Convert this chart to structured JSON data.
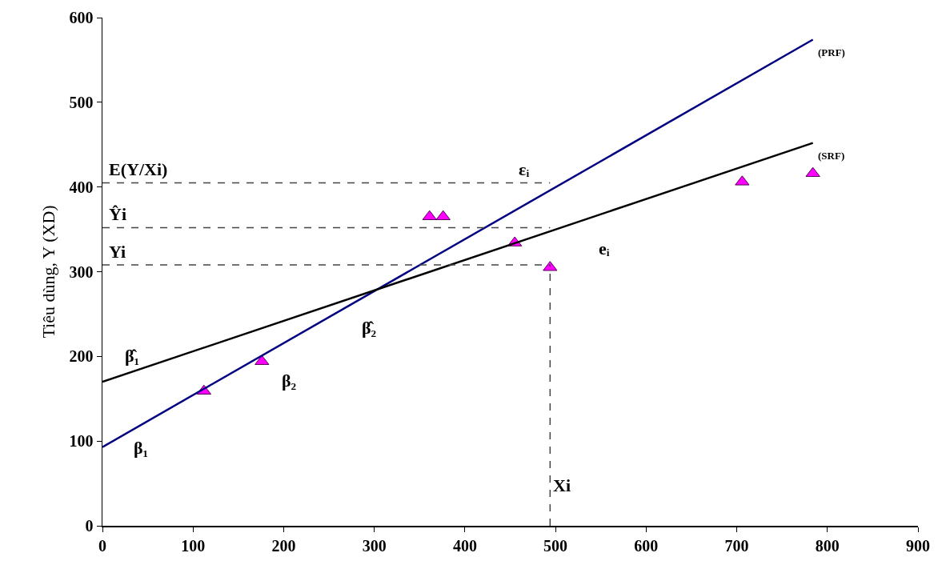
{
  "chart_data": {
    "type": "scatter",
    "ylabel": "Tiêu dùng, Y (XD)",
    "xlim": [
      0,
      900
    ],
    "xticks": [
      0,
      100,
      200,
      300,
      400,
      500,
      600,
      700,
      800,
      900
    ],
    "ylim": [
      0,
      600
    ],
    "yticks": [
      0,
      100,
      200,
      300,
      400,
      500,
      600
    ],
    "grid": false,
    "legend": false,
    "series": [
      {
        "marker": "triangle",
        "color": "#ff00ff",
        "x": [
          112,
          176,
          361,
          376,
          455,
          494,
          706,
          784
        ],
        "values": [
          159,
          194,
          365,
          365,
          334,
          305,
          406,
          416
        ]
      },
      {
        "type": "line",
        "name": "(PRF)",
        "color": "#000080",
        "x": [
          0,
          784
        ],
        "values": [
          93,
          574
        ]
      },
      {
        "type": "line",
        "name": "(SRF)",
        "color": "#000000",
        "x": [
          0,
          784
        ],
        "values": [
          170,
          452
        ]
      }
    ],
    "ref_lines": [
      {
        "axis": "y",
        "value": 405,
        "label": "E(Y/Xi)",
        "line_style": "dashed"
      },
      {
        "axis": "y",
        "value": 352,
        "label": "Ŷi",
        "line_style": "dashed"
      },
      {
        "axis": "y",
        "value": 308,
        "label": "Yi",
        "line_style": "dashed"
      },
      {
        "axis": "x",
        "value": 494,
        "label": "Xi",
        "line_style": "dashed"
      }
    ],
    "annotations": [
      "β₁",
      "β₂",
      "β̂₁",
      "β̂₂",
      "εᵢ",
      "eᵢ"
    ]
  }
}
